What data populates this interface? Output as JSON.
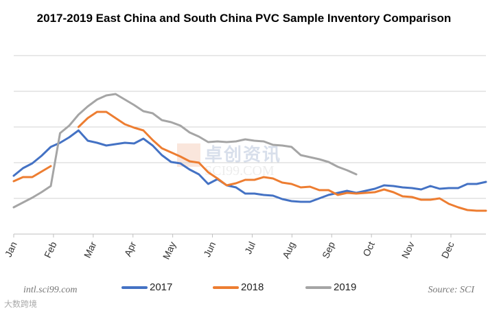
{
  "chart_data": {
    "type": "line",
    "title": "2017-2019 East China and South China PVC Sample Inventory Comparison",
    "xlabel": "",
    "ylabel": "",
    "x_tick_labels": [
      "Jan",
      "Feb",
      "Mar",
      "Apr",
      "May",
      "Jun",
      "Jul",
      "Aug",
      "Sep",
      "Oct",
      "Nov",
      "Dec"
    ],
    "x_unit": "week index (0-51)",
    "ylim": [
      0,
      260
    ],
    "y_gridlines": [
      52,
      104,
      156,
      208,
      260
    ],
    "y_note": "no y-axis labels shown; values in relative units",
    "grid": true,
    "legend_position": "bottom",
    "series": [
      {
        "name": "2017",
        "color": "#4472C4",
        "values": [
          85,
          96,
          103,
          114,
          127,
          133,
          141,
          151,
          136,
          133,
          129,
          131,
          133,
          132,
          139,
          129,
          115,
          105,
          103,
          94,
          87,
          73,
          80,
          71,
          68,
          59,
          59,
          57,
          56,
          51,
          48,
          47,
          47,
          52,
          57,
          60,
          63,
          60,
          63,
          66,
          71,
          70,
          68,
          67,
          65,
          70,
          66,
          67,
          67,
          73,
          73,
          76
        ]
      },
      {
        "name": "2018",
        "color": "#ED7D31",
        "values": [
          77,
          83,
          83,
          91,
          99,
          null,
          null,
          156,
          169,
          178,
          178,
          169,
          160,
          155,
          151,
          137,
          125,
          119,
          113,
          106,
          104,
          90,
          81,
          71,
          74,
          79,
          79,
          83,
          81,
          75,
          73,
          68,
          69,
          64,
          64,
          57,
          60,
          59,
          60,
          61,
          65,
          61,
          55,
          54,
          50,
          50,
          52,
          44,
          39,
          35,
          34,
          34
        ]
      },
      {
        "name": "2019",
        "color": "#A5A5A5",
        "values": [
          39,
          46,
          53,
          61,
          70,
          147,
          158,
          174,
          186,
          196,
          202,
          204,
          196,
          188,
          179,
          176,
          166,
          163,
          158,
          148,
          142,
          134,
          135,
          134,
          135,
          138,
          136,
          135,
          130,
          129,
          127,
          115,
          112,
          109,
          105,
          98,
          93,
          87,
          null,
          null,
          null,
          null,
          null,
          null,
          null,
          null,
          null,
          null,
          null,
          null,
          null,
          null
        ]
      }
    ]
  },
  "footer": {
    "site": "intl.sci99.com",
    "source": "Source: SCI",
    "watermark_bottom": "大数跨境"
  },
  "watermark": {
    "cn": "卓创资讯",
    "en": "SCI99.COM"
  }
}
